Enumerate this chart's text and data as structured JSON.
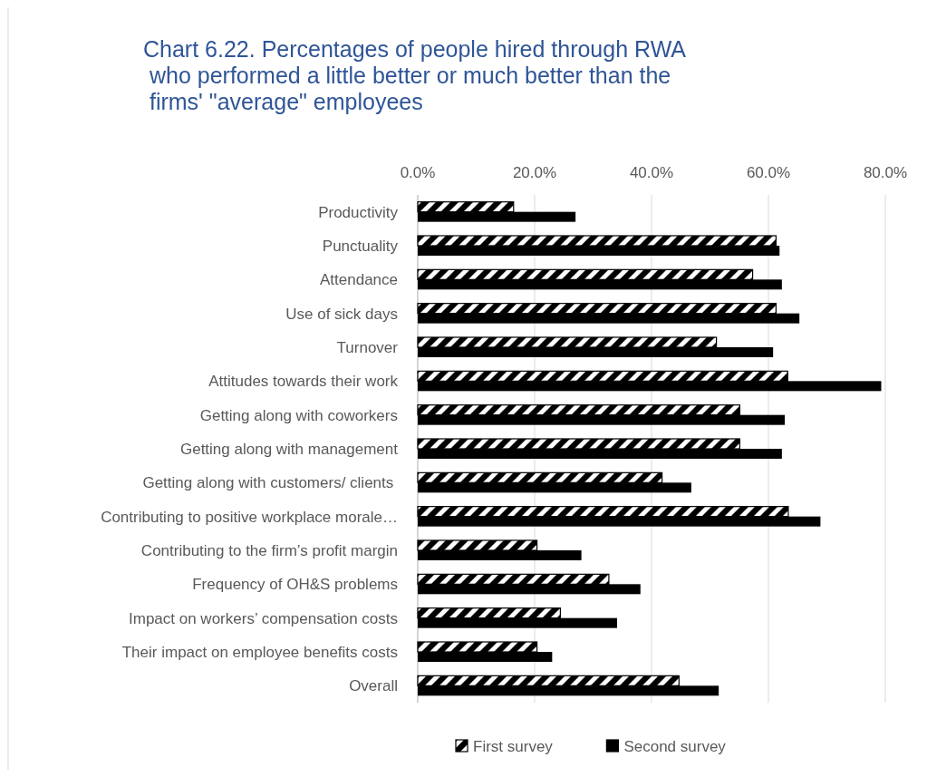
{
  "chart_data": {
    "type": "bar",
    "orientation": "horizontal",
    "title": "Chart 6.22. Percentages of people hired through RWA\n who performed a little better or much better than the\n firms' \"average\" employees",
    "categories": [
      "Productivity",
      "Punctuality",
      "Attendance",
      "Use of sick days",
      "Turnover",
      "Attitudes towards their work",
      "Getting along with coworkers",
      "Getting along with management",
      "Getting along with customers/ clients ",
      "Contributing to positive workplace morale…",
      "Contributing to the firm’s profit margin",
      "Frequency of OH&S problems",
      "Impact on workers’ compensation costs",
      "Their impact on employee benefits costs",
      "Overall"
    ],
    "series": [
      {
        "name": "First survey",
        "color": "#000000",
        "values": [
          16.4,
          61.3,
          57.3,
          61.3,
          51.1,
          63.3,
          55.1,
          55.1,
          41.8,
          63.4,
          20.4,
          32.7,
          24.4,
          20.4,
          44.7
        ]
      },
      {
        "name": "Second survey",
        "color": "#000000",
        "values": [
          27.0,
          61.9,
          62.3,
          65.3,
          60.8,
          79.3,
          62.8,
          62.3,
          46.8,
          68.9,
          28.0,
          38.1,
          34.1,
          23.0,
          51.5
        ]
      }
    ],
    "xlim": [
      0,
      80
    ],
    "xticks": [
      {
        "value": 0,
        "label": "0.0%"
      },
      {
        "value": 20,
        "label": "20.0%"
      },
      {
        "value": 40,
        "label": "40.0%"
      },
      {
        "value": 60,
        "label": "60.0%"
      },
      {
        "value": 80,
        "label": "80.0%"
      }
    ],
    "grid": "x",
    "legend": "bottom"
  }
}
